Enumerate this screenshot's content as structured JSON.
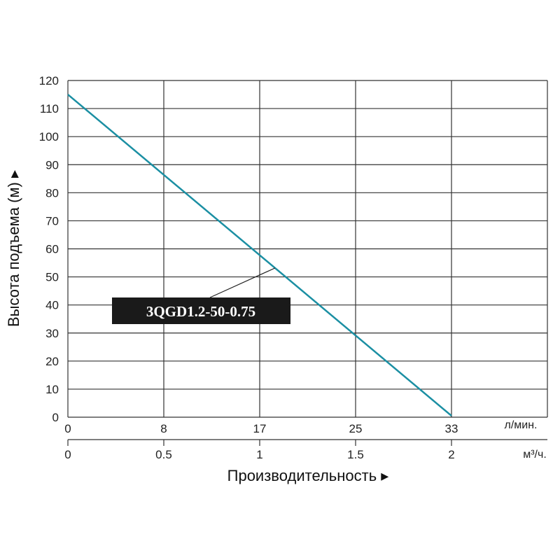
{
  "chart_data": {
    "type": "line",
    "ylabel": "Высота подъема (м) ▸",
    "xlabel": "Производительность ▸",
    "y_ticks": [
      "0",
      "10",
      "20",
      "30",
      "40",
      "50",
      "60",
      "70",
      "80",
      "90",
      "100",
      "110",
      "120"
    ],
    "ylim": [
      0,
      120
    ],
    "x_lpm_ticks": [
      "0",
      "8",
      "17",
      "25",
      "33"
    ],
    "x_lpm_unit": "л/мин.",
    "x_m3_ticks": [
      "0",
      "0.5",
      "1",
      "1.5",
      "2"
    ],
    "x_m3_unit": "м³/ч.",
    "xlim_m3h": [
      0,
      2.5
    ],
    "grid": true,
    "series": [
      {
        "name": "3QGD1.2-50-0.75",
        "color": "#1b8fa3",
        "x_m3h": [
          0,
          2
        ],
        "y_m": [
          115,
          0.5
        ]
      }
    ]
  },
  "colors": {
    "curve": "#1b8fa3",
    "grid": "#333333",
    "label_bg": "#1a1a1a"
  }
}
